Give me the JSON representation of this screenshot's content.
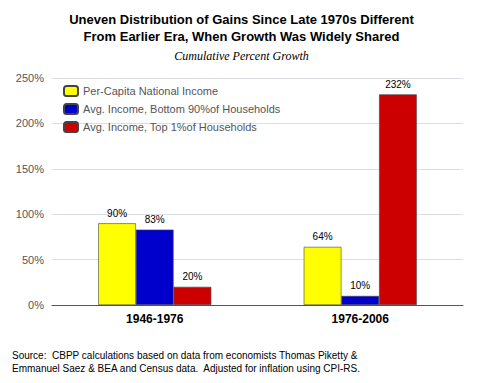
{
  "chart_data": {
    "type": "bar",
    "title": "Uneven Distribution of Gains Since Late 1970s Different\nFrom Earlier Era, When Growth Was Widely Shared",
    "subtitle": "Cumulative Percent Growth",
    "categories": [
      "1946-1976",
      "1976-2006"
    ],
    "series": [
      {
        "name": "Per-Capita National Income",
        "color": "#FFFF00",
        "values": [
          90,
          64
        ],
        "value_labels": [
          "90%",
          "64%"
        ]
      },
      {
        "name": "Avg. Income, Bottom 90%of Households",
        "color": "#0000CC",
        "values": [
          83,
          10
        ],
        "value_labels": [
          "83%",
          "10%"
        ]
      },
      {
        "name": "Avg. Income, Top 1%of Households",
        "color": "#CC0000",
        "values": [
          20,
          232
        ],
        "value_labels": [
          "20%",
          "232%"
        ]
      }
    ],
    "ylim": [
      0,
      250
    ],
    "yticks": [
      {
        "value": 0,
        "label": "0%"
      },
      {
        "value": 50,
        "label": "50%"
      },
      {
        "value": 100,
        "label": "100%"
      },
      {
        "value": 150,
        "label": "150%"
      },
      {
        "value": 200,
        "label": "200%"
      },
      {
        "value": 250,
        "label": "250%"
      }
    ],
    "grid": true,
    "legend": "upper left",
    "data_labels": true,
    "annotations": [
      "Source:  CBPP calculations based on data from economists Thomas Piketty &\nEmmanuel Saez & BEA and Census data.  Adjusted for inflation using CPI-RS."
    ]
  }
}
